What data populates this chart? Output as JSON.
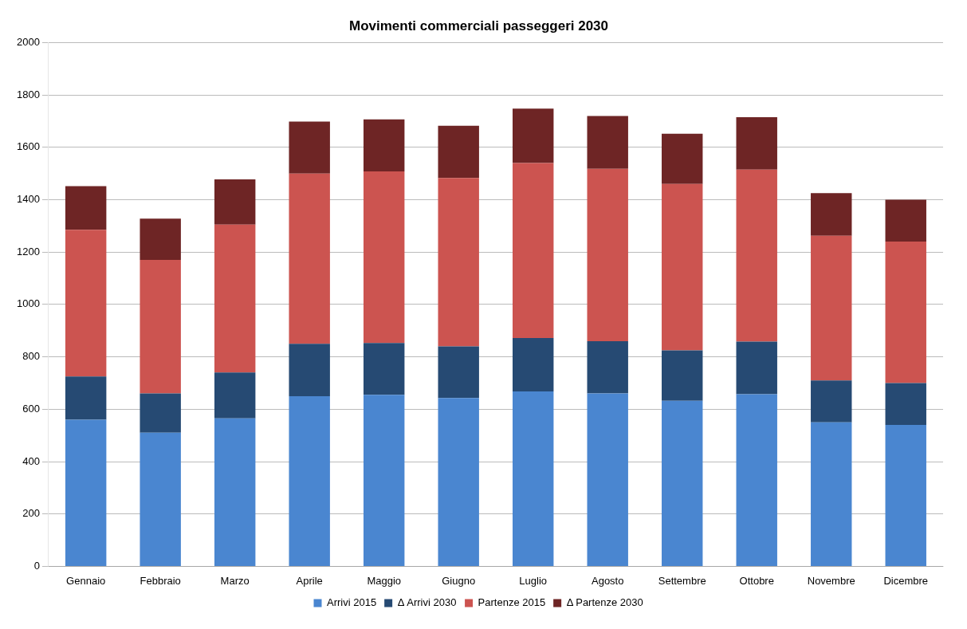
{
  "chart_data": {
    "type": "bar",
    "title": "Movimenti commerciali passeggeri 2030",
    "stacked": true,
    "categories": [
      "Gennaio",
      "Febbraio",
      "Marzo",
      "Aprile",
      "Maggio",
      "Giugno",
      "Luglio",
      "Agosto",
      "Settembre",
      "Ottobre",
      "Novembre",
      "Dicembre"
    ],
    "series": [
      {
        "name": "Arrivi 2015",
        "color": "#4a86d0",
        "values": [
          560,
          510,
          565,
          650,
          655,
          643,
          668,
          660,
          632,
          657,
          550,
          540
        ]
      },
      {
        "name": "Δ Arrivi 2030",
        "color": "#264a73",
        "values": [
          165,
          150,
          175,
          200,
          198,
          197,
          204,
          200,
          193,
          201,
          160,
          160
        ]
      },
      {
        "name": "Partenze 2015",
        "color": "#cc5450",
        "values": [
          560,
          510,
          565,
          650,
          655,
          643,
          668,
          658,
          635,
          657,
          552,
          540
        ]
      },
      {
        "name": "Δ Partenze 2030",
        "color": "#6e2525",
        "values": [
          167,
          158,
          173,
          198,
          199,
          199,
          208,
          202,
          192,
          200,
          163,
          160
        ]
      }
    ],
    "ylim": [
      0,
      2000
    ],
    "yticks": [
      0,
      200,
      400,
      600,
      800,
      1000,
      1200,
      1400,
      1600,
      1800,
      2000
    ],
    "grid": "y",
    "legend": "bottom"
  }
}
